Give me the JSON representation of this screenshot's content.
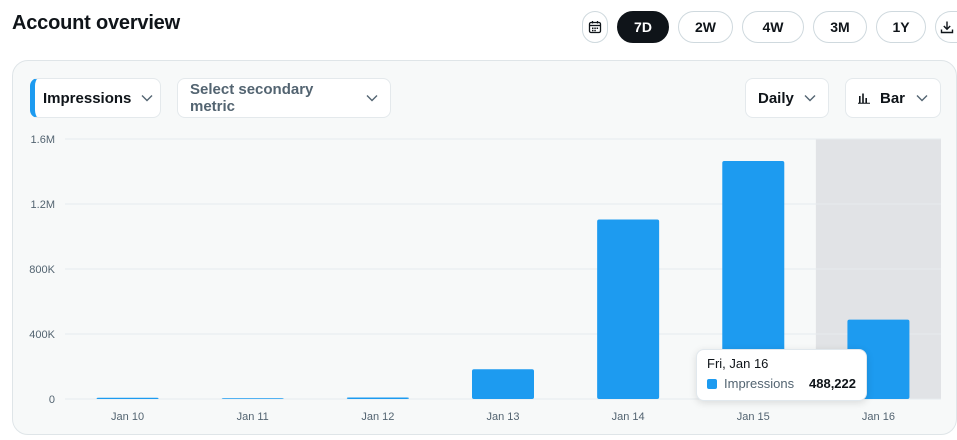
{
  "header": {
    "title": "Account overview"
  },
  "ranges": [
    {
      "label": "7D",
      "active": true
    },
    {
      "label": "2W",
      "active": false
    },
    {
      "label": "4W",
      "active": false
    },
    {
      "label": "3M",
      "active": false
    },
    {
      "label": "1Y",
      "active": false
    }
  ],
  "icons": {
    "calendar": "calendar-icon",
    "download": "download-icon",
    "chevron": "chevron-down-icon",
    "bar_chart": "bar-chart-icon"
  },
  "controls": {
    "primary_metric": "Impressions",
    "secondary_metric": "Select secondary metric",
    "interval": "Daily",
    "chart_type": "Bar"
  },
  "colors": {
    "accent": "#1d9bf0",
    "highlight_column": "#e1e3e6",
    "active_range": "#0f1419"
  },
  "chart_data": {
    "type": "bar",
    "categories": [
      "Jan 10",
      "Jan 11",
      "Jan 12",
      "Jan 13",
      "Jan 14",
      "Jan 15",
      "Jan 16"
    ],
    "series": [
      {
        "name": "Impressions",
        "values": [
          8000,
          5000,
          9000,
          183000,
          1105000,
          1465000,
          488222
        ]
      }
    ],
    "ylim": [
      0,
      1600000
    ],
    "yticks": [
      {
        "value": 0,
        "label": "0"
      },
      {
        "value": 400000,
        "label": "400K"
      },
      {
        "value": 800000,
        "label": "800K"
      },
      {
        "value": 1200000,
        "label": "1.2M"
      },
      {
        "value": 1600000,
        "label": "1.6M"
      }
    ],
    "grid": true,
    "highlighted_category": "Jan 16"
  },
  "tooltip": {
    "date": "Fri, Jan 16",
    "metric": "Impressions",
    "value": "488,222"
  }
}
